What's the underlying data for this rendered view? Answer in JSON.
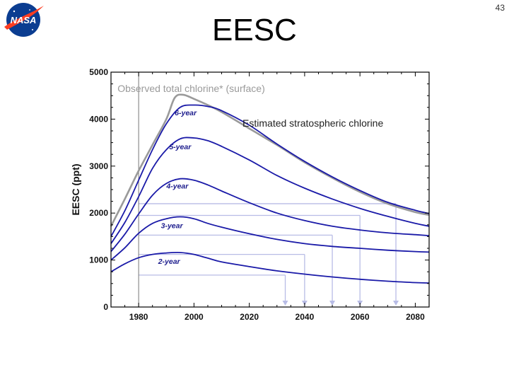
{
  "slide": {
    "title": "EESC",
    "page_number": "43"
  },
  "logo": {
    "text": "NASA",
    "colors": {
      "disk": "#0b3d91",
      "chevron": "#fc3d21",
      "text": "#ffffff"
    }
  },
  "colors": {
    "observed": "#9a9a9a",
    "estimated": "#1a1aa8",
    "threshold": "#b8bce6",
    "frame": "#000000"
  },
  "chart_data": {
    "type": "line",
    "title": "EESC",
    "xlabel": "",
    "ylabel": "EESC (ppt)",
    "xlim": [
      1970,
      2085
    ],
    "ylim": [
      0,
      5000
    ],
    "x_ticks": [
      1980,
      2000,
      2020,
      2040,
      2060,
      2080
    ],
    "y_ticks": [
      0,
      1000,
      2000,
      3000,
      4000,
      5000
    ],
    "vertical_reference_line_x": 1980,
    "annotations": [
      {
        "text": "Observed total chlorine* (surface)",
        "x": 1999,
        "y": 4580
      },
      {
        "text": "Estimated stratospheric chlorine",
        "x": 2043,
        "y": 3840
      }
    ],
    "series": [
      {
        "name": "Observed total chlorine* (surface)",
        "kind": "observed",
        "x": [
          1970,
          1975,
          1980,
          1985,
          1990,
          1993,
          1996,
          2000,
          2005,
          2010,
          2020,
          2030,
          2040,
          2050,
          2060,
          2070,
          2080,
          2085
        ],
        "y": [
          1720,
          2300,
          2900,
          3450,
          4000,
          4450,
          4520,
          4430,
          4300,
          4150,
          3800,
          3450,
          3080,
          2750,
          2450,
          2200,
          2020,
          1960
        ]
      },
      {
        "name": "6-year",
        "kind": "estimated",
        "label": "6-year",
        "label_x": 1997,
        "label_y": 4080,
        "x": [
          1970,
          1975,
          1980,
          1985,
          1990,
          1995,
          2000,
          2005,
          2010,
          2020,
          2030,
          2040,
          2050,
          2060,
          2070,
          2080,
          2085
        ],
        "y": [
          1500,
          2050,
          2700,
          3350,
          3900,
          4250,
          4300,
          4270,
          4180,
          3870,
          3470,
          3100,
          2770,
          2480,
          2230,
          2060,
          1990
        ]
      },
      {
        "name": "5-year",
        "kind": "estimated",
        "label": "5-year",
        "label_x": 1995,
        "label_y": 3360,
        "x": [
          1970,
          1975,
          1980,
          1985,
          1990,
          1995,
          2000,
          2005,
          2010,
          2020,
          2030,
          2040,
          2050,
          2060,
          2070,
          2080,
          2085
        ],
        "y": [
          1350,
          1800,
          2350,
          2950,
          3350,
          3580,
          3600,
          3540,
          3420,
          3130,
          2800,
          2530,
          2300,
          2100,
          1930,
          1780,
          1720
        ]
      },
      {
        "name": "4-year",
        "kind": "estimated",
        "label": "4-year",
        "label_x": 1994,
        "label_y": 2520,
        "x": [
          1970,
          1975,
          1980,
          1985,
          1990,
          1995,
          2000,
          2005,
          2010,
          2020,
          2030,
          2040,
          2050,
          2060,
          2070,
          2080,
          2085
        ],
        "y": [
          1180,
          1550,
          1980,
          2380,
          2630,
          2730,
          2700,
          2600,
          2470,
          2220,
          2000,
          1840,
          1720,
          1640,
          1580,
          1540,
          1520
        ]
      },
      {
        "name": "3-year",
        "kind": "estimated",
        "label": "3-year",
        "label_x": 1992,
        "label_y": 1680,
        "x": [
          1970,
          1975,
          1980,
          1985,
          1990,
          1995,
          2000,
          2005,
          2010,
          2020,
          2030,
          2040,
          2050,
          2060,
          2070,
          2080,
          2085
        ],
        "y": [
          1000,
          1260,
          1570,
          1780,
          1880,
          1920,
          1880,
          1780,
          1700,
          1560,
          1440,
          1350,
          1290,
          1250,
          1210,
          1180,
          1170
        ]
      },
      {
        "name": "2-year",
        "kind": "estimated",
        "label": "2-year",
        "label_x": 1991,
        "label_y": 920,
        "x": [
          1970,
          1975,
          1980,
          1985,
          1990,
          1995,
          2000,
          2005,
          2010,
          2020,
          2030,
          2040,
          2050,
          2060,
          2070,
          2080,
          2085
        ],
        "y": [
          750,
          920,
          1050,
          1120,
          1150,
          1160,
          1120,
          1040,
          960,
          860,
          770,
          700,
          640,
          590,
          550,
          520,
          510
        ]
      }
    ],
    "recovery_markers": [
      {
        "y_level": 2200,
        "x_end": 2073
      },
      {
        "y_level": 1950,
        "x_end": 2060
      },
      {
        "y_level": 1530,
        "x_end": 2050
      },
      {
        "y_level": 1120,
        "x_end": 2040
      },
      {
        "y_level": 680,
        "x_end": 2033
      }
    ]
  }
}
